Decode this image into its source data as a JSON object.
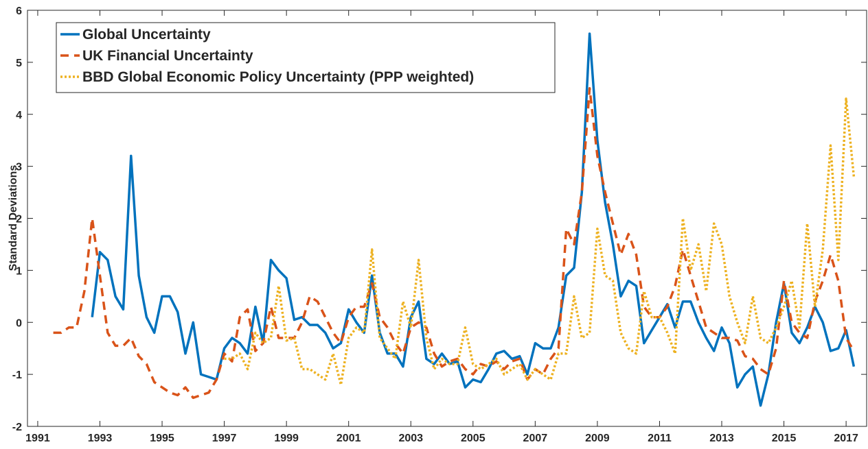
{
  "chart_data": {
    "type": "line",
    "ylabel": "Standard Deviations",
    "xlim": [
      1990.67,
      2017.66
    ],
    "xticks": [
      1991,
      1993,
      1995,
      1997,
      1999,
      2001,
      2003,
      2005,
      2007,
      2009,
      2011,
      2013,
      2015,
      2017
    ],
    "ylim": [
      -2,
      6
    ],
    "yticks": [
      -2,
      -1,
      0,
      1,
      2,
      3,
      4,
      5,
      6
    ],
    "grid": false,
    "legend": "upper left",
    "x": [
      1991.5,
      1991.75,
      1992,
      1992.25,
      1992.5,
      1992.75,
      1993,
      1993.25,
      1993.5,
      1993.75,
      1994,
      1994.25,
      1994.5,
      1994.75,
      1995,
      1995.25,
      1995.5,
      1995.75,
      1996,
      1996.25,
      1996.5,
      1996.75,
      1997,
      1997.25,
      1997.5,
      1997.75,
      1998,
      1998.25,
      1998.5,
      1998.75,
      1999,
      1999.25,
      1999.5,
      1999.75,
      2000,
      2000.25,
      2000.5,
      2000.75,
      2001,
      2001.25,
      2001.5,
      2001.75,
      2002,
      2002.25,
      2002.5,
      2002.75,
      2003,
      2003.25,
      2003.5,
      2003.75,
      2004,
      2004.25,
      2004.5,
      2004.75,
      2005,
      2005.25,
      2005.5,
      2005.75,
      2006,
      2006.25,
      2006.5,
      2006.75,
      2007,
      2007.25,
      2007.5,
      2007.75,
      2008,
      2008.25,
      2008.5,
      2008.75,
      2009,
      2009.25,
      2009.5,
      2009.75,
      2010,
      2010.25,
      2010.5,
      2010.75,
      2011,
      2011.25,
      2011.5,
      2011.75,
      2012,
      2012.25,
      2012.5,
      2012.75,
      2013,
      2013.25,
      2013.5,
      2013.75,
      2014,
      2014.25,
      2014.5,
      2014.75,
      2015,
      2015.25,
      2015.5,
      2015.75,
      2016,
      2016.25,
      2016.5,
      2016.75,
      2017,
      2017.25
    ],
    "series": [
      {
        "name": "Global Uncertainty",
        "color": "#0072BD",
        "linestyle": "solid",
        "values": [
          null,
          null,
          null,
          null,
          null,
          0.1,
          1.35,
          1.2,
          0.5,
          0.25,
          3.2,
          0.9,
          0.1,
          -0.2,
          0.5,
          0.5,
          0.2,
          -0.6,
          0.0,
          -1.0,
          -1.05,
          -1.1,
          -0.5,
          -0.3,
          -0.4,
          -0.6,
          0.3,
          -0.4,
          1.2,
          1.0,
          0.85,
          0.05,
          0.1,
          -0.05,
          -0.05,
          -0.2,
          -0.5,
          -0.4,
          0.25,
          0.0,
          -0.2,
          0.9,
          -0.2,
          -0.6,
          -0.6,
          -0.85,
          0.1,
          0.4,
          -0.7,
          -0.8,
          -0.6,
          -0.8,
          -0.75,
          -1.25,
          -1.1,
          -1.15,
          -0.9,
          -0.6,
          -0.55,
          -0.7,
          -0.65,
          -1.0,
          -0.4,
          -0.5,
          -0.5,
          -0.1,
          0.9,
          1.05,
          2.5,
          5.55,
          3.5,
          2.3,
          1.5,
          0.5,
          0.8,
          0.7,
          -0.4,
          -0.15,
          0.1,
          0.35,
          -0.1,
          0.4,
          0.4,
          0.0,
          -0.3,
          -0.55,
          -0.1,
          -0.4,
          -1.25,
          -1.0,
          -0.85,
          -1.6,
          -1.0,
          0.0,
          0.75,
          -0.2,
          -0.4,
          -0.1,
          0.3,
          0.0,
          -0.55,
          -0.5,
          -0.15,
          -0.85
        ]
      },
      {
        "name": "UK Financial Uncertainty",
        "color": "#D95319",
        "linestyle": "dashed",
        "values": [
          -0.2,
          -0.2,
          -0.1,
          -0.1,
          0.6,
          2.0,
          0.9,
          -0.2,
          -0.45,
          -0.45,
          -0.3,
          -0.65,
          -0.8,
          -1.15,
          -1.25,
          -1.35,
          -1.4,
          -1.25,
          -1.45,
          -1.4,
          -1.35,
          -1.1,
          -0.6,
          -0.75,
          0.1,
          0.25,
          -0.55,
          -0.4,
          0.3,
          -0.3,
          -0.3,
          -0.3,
          0.0,
          0.5,
          0.4,
          0.1,
          -0.2,
          -0.4,
          0.1,
          0.3,
          0.3,
          0.75,
          0.1,
          -0.1,
          -0.4,
          -0.6,
          -0.1,
          0.0,
          -0.1,
          -0.6,
          -0.85,
          -0.75,
          -0.7,
          -0.9,
          -1.0,
          -0.8,
          -0.85,
          -0.75,
          -0.9,
          -0.75,
          -0.7,
          -1.1,
          -0.9,
          -1.0,
          -0.7,
          -0.5,
          1.8,
          1.5,
          2.5,
          4.5,
          3.2,
          2.5,
          1.9,
          1.3,
          1.7,
          1.3,
          0.3,
          0.1,
          0.1,
          0.3,
          0.7,
          1.4,
          0.9,
          0.4,
          -0.1,
          -0.2,
          -0.3,
          -0.3,
          -0.35,
          -0.65,
          -0.7,
          -0.9,
          -1.0,
          -0.5,
          0.8,
          0.0,
          -0.2,
          -0.3,
          0.4,
          0.8,
          1.3,
          0.8,
          -0.3,
          -0.55
        ]
      },
      {
        "name": "BBD Global Economic Policy Uncertainty (PPP weighted)",
        "color": "#EDB120",
        "linestyle": "dotted",
        "values": [
          null,
          null,
          null,
          null,
          null,
          null,
          null,
          null,
          null,
          null,
          null,
          null,
          null,
          null,
          null,
          null,
          null,
          null,
          null,
          null,
          null,
          null,
          -0.7,
          -0.7,
          -0.6,
          -0.9,
          -0.2,
          -0.4,
          -0.3,
          0.7,
          -0.35,
          -0.3,
          -0.9,
          -0.9,
          -1.0,
          -1.1,
          -0.6,
          -1.2,
          -0.3,
          -0.1,
          -0.2,
          1.4,
          -0.3,
          -0.5,
          -0.7,
          0.4,
          -0.1,
          1.2,
          -0.3,
          -0.9,
          -0.7,
          -0.8,
          -0.8,
          -0.1,
          -0.8,
          -0.9,
          -0.8,
          -0.7,
          -1.0,
          -0.9,
          -0.8,
          -1.1,
          -0.9,
          -1.0,
          -1.1,
          -0.6,
          -0.6,
          0.5,
          -0.3,
          -0.2,
          1.8,
          0.9,
          0.8,
          -0.2,
          -0.5,
          -0.6,
          0.6,
          0.1,
          0.1,
          -0.2,
          -0.6,
          2.0,
          1.0,
          1.5,
          0.6,
          1.9,
          1.5,
          0.5,
          0.0,
          -0.4,
          0.5,
          -0.3,
          -0.4,
          -0.1,
          0.3,
          0.8,
          -0.1,
          1.9,
          0.3,
          1.4,
          3.4,
          1.2,
          4.3,
          2.8
        ]
      }
    ]
  }
}
